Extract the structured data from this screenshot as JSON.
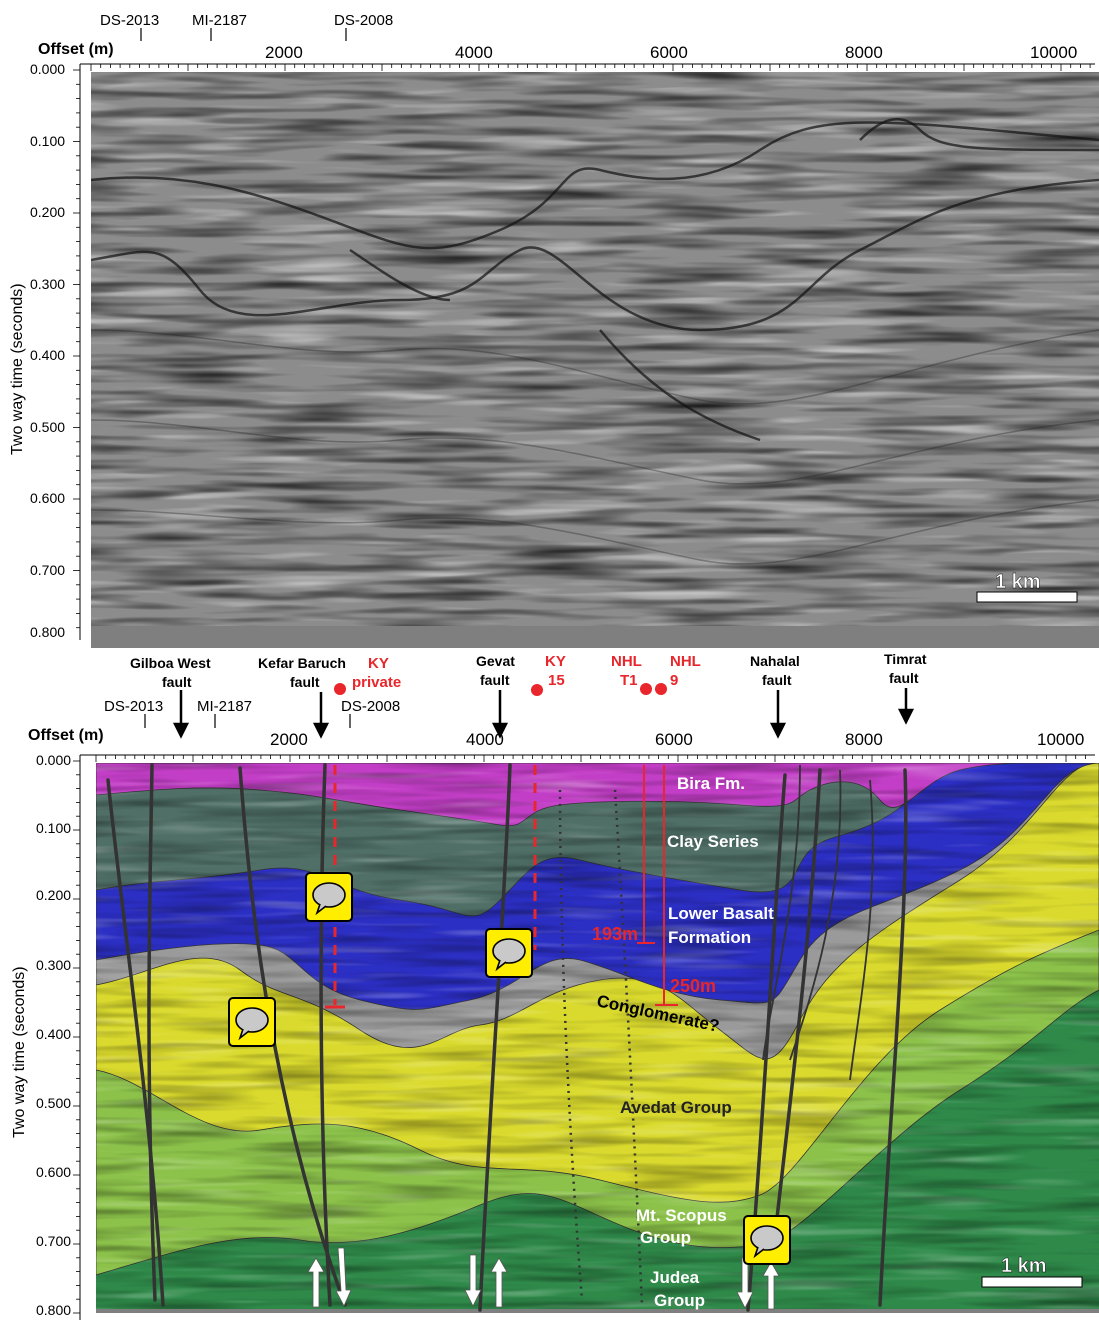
{
  "top_panel": {
    "wells": [
      "DS-2013",
      "MI-2187",
      "DS-2008"
    ],
    "offset_label": "Offset (m)",
    "x_ticks": [
      "2000",
      "4000",
      "6000",
      "8000",
      "10000"
    ],
    "y_label": "Two way time (seconds)",
    "y_ticks": [
      "0.000",
      "0.100",
      "0.200",
      "0.300",
      "0.400",
      "0.500",
      "0.600",
      "0.700",
      "0.800"
    ],
    "scale_bar": "1 km"
  },
  "bottom_panel": {
    "faults": [
      {
        "line1": "Gilboa West",
        "line2": "fault"
      },
      {
        "line1": "Kefar Baruch",
        "line2": "fault"
      },
      {
        "line1": "Gevat",
        "line2": "fault"
      },
      {
        "line1": "Nahalal",
        "line2": "fault"
      },
      {
        "line1": "Timrat",
        "line2": "fault"
      }
    ],
    "boreholes": [
      {
        "line1": "KY",
        "line2": "private"
      },
      {
        "line1": "KY",
        "line2": "15"
      },
      {
        "line1": "NHL",
        "line2": "T1"
      },
      {
        "line1": "NHL",
        "line2": "9"
      }
    ],
    "wells": [
      "DS-2013",
      "MI-2187",
      "DS-2008"
    ],
    "offset_label": "Offset (m)",
    "x_ticks": [
      "2000",
      "4000",
      "6000",
      "8000",
      "10000"
    ],
    "y_label": "Two way time (seconds)",
    "y_ticks": [
      "0.000",
      "0.100",
      "0.200",
      "0.300",
      "0.400",
      "0.500",
      "0.600",
      "0.700",
      "0.800"
    ],
    "units": {
      "bira": "Bira Fm.",
      "clay": "Clay Series",
      "basalt1": "Lower Basalt",
      "basalt2": "Formation",
      "conglomerate": "Conglomerate?",
      "avedat": "Avedat Group",
      "scopus1": "Mt. Scopus",
      "scopus2": "Group",
      "judea1": "Judea",
      "judea2": "Group"
    },
    "depths": [
      "193m",
      "250m"
    ],
    "scale_bar": "1 km",
    "colors": {
      "bira": "#c23ec6",
      "clay": "#4f6f67",
      "basalt": "#2c2fc4",
      "conglomerate": "#9a9a9a",
      "avedat": "#dada2e",
      "scopus": "#8cc24a",
      "judea": "#2f8a4a",
      "red": "#e8262b"
    }
  }
}
